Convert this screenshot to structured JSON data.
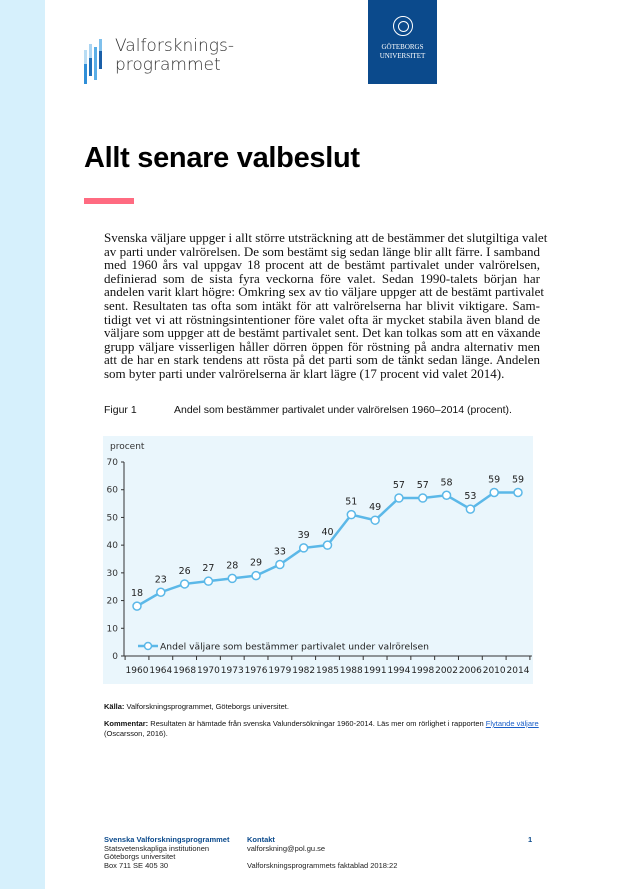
{
  "header": {
    "logo_text_line1": "Valforsknings-",
    "logo_text_line2": "programmet",
    "university_line1": "GÖTEBORGS",
    "university_line2": "UNIVERSITET"
  },
  "title": "Allt senare valbeslut",
  "body_lines": [
    "Svenska väljare uppger i allt större utsträckning att de bestämmer det slutgiltiga valet",
    "av parti under valrörelsen. De som bestämt sig sedan länge blir allt färre. I samband",
    "med 1960 års val uppgav 18 procent att de bestämt partivalet under valrörelsen,",
    "definierad som de sista fyra veckorna före valet. Sedan 1990-talets början har",
    "andelen varit klart högre: Omkring sex av tio väljare uppger att de bestämt partivalet",
    "sent. Resultaten tas ofta som intäkt för att valrörelserna har blivit viktigare. Sam-",
    "tidigt vet vi att röstningsintentioner före valet ofta är mycket stabila även bland de",
    "väljare som uppger att de bestämt partivalet sent. Det kan tolkas som att en växande",
    "grupp väljare visserligen håller dörren öppen för röstning på andra alternativ men",
    "att de har en stark tendens att rösta på det parti som de tänkt sedan länge. Andelen",
    "som byter parti under valrörelserna är klart lägre (17 procent vid valet 2014)."
  ],
  "figure": {
    "label": "Figur 1",
    "caption": "Andel som bestämmer partivalet under valrörelsen 1960–2014 (procent)."
  },
  "chart_data": {
    "type": "line",
    "ylabel": "procent",
    "ylim": [
      0,
      70
    ],
    "yticks": [
      0,
      10,
      20,
      30,
      40,
      50,
      60,
      70
    ],
    "grid": false,
    "legend_position": "bottom-left",
    "categories": [
      "1960",
      "1964",
      "1968",
      "1970",
      "1973",
      "1976",
      "1979",
      "1982",
      "1985",
      "1988",
      "1991",
      "1994",
      "1998",
      "2002",
      "2006",
      "2010",
      "2014"
    ],
    "series": [
      {
        "name": "Andel väljare som bestämmer partivalet under valrörelsen",
        "values": [
          18,
          23,
          26,
          27,
          28,
          29,
          33,
          39,
          40,
          51,
          49,
          57,
          57,
          58,
          53,
          59,
          59
        ],
        "color": "#5bb8e8"
      }
    ]
  },
  "notes": {
    "source_label": "Källa:",
    "source_text": " Valforskningsprogrammet, Göteborgs universitet.",
    "comment_label": "Kommentar:",
    "comment_text": " Resultaten är hämtade från svenska Valundersökningar 1960-2014. Läs mer om rörlighet i rapporten ",
    "link_text": "Flytande väljare",
    "comment_tail": " (Oscarsson, 2016)."
  },
  "footer": {
    "org": "Svenska Valforskningsprogrammet",
    "dept": "Statsvetenskapliga institutionen",
    "uni": "Göteborgs universitet",
    "address": "Box 711 SE 405 30",
    "contact_label": "Kontakt",
    "email": "valforskning@pol.gu.se",
    "series": "Valforskningsprogrammets faktablad 2018:22",
    "page": "1"
  },
  "colors": {
    "strip": "#d6f0fc",
    "university_blue": "#0b4a8c",
    "accent_pink": "#ff6b81",
    "chart_bg": "#eaf6fc"
  }
}
